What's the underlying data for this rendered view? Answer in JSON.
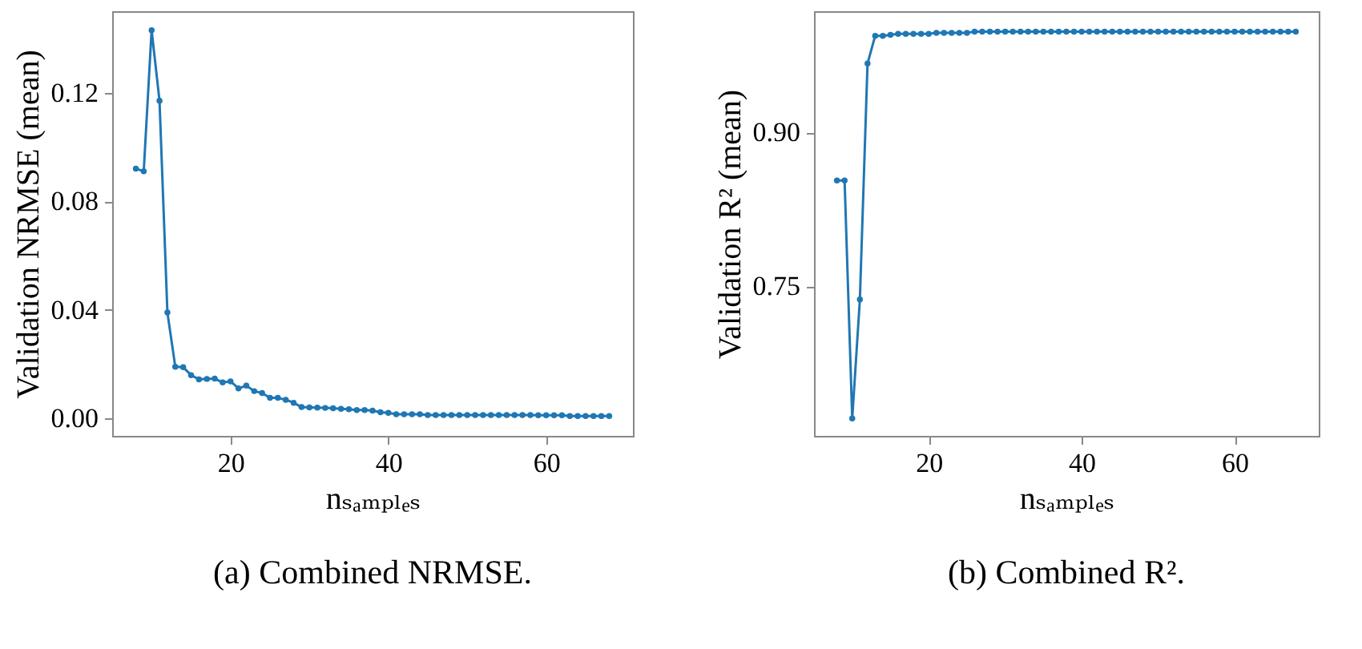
{
  "chart_data": [
    {
      "type": "line",
      "title": "(a) Combined NRMSE.",
      "xlabel": "nₛₐₘₚₗₑₛ",
      "ylabel": "Validation NRMSE (mean)",
      "x": [
        8,
        9,
        10,
        11,
        12,
        13,
        14,
        15,
        16,
        17,
        18,
        19,
        20,
        21,
        22,
        23,
        24,
        25,
        26,
        27,
        28,
        29,
        30,
        31,
        32,
        33,
        34,
        35,
        36,
        37,
        38,
        39,
        40,
        41,
        42,
        43,
        44,
        45,
        46,
        47,
        48,
        49,
        50,
        51,
        52,
        53,
        54,
        55,
        56,
        57,
        58,
        59,
        60,
        61,
        62,
        63,
        64,
        65,
        66,
        67,
        68
      ],
      "series": [
        {
          "color": "#1f77b4",
          "values": [
            0.092,
            0.091,
            0.143,
            0.117,
            0.039,
            0.019,
            0.0188,
            0.0159,
            0.0143,
            0.0145,
            0.0146,
            0.0132,
            0.0136,
            0.011,
            0.012,
            0.01,
            0.0093,
            0.0075,
            0.0075,
            0.0068,
            0.0057,
            0.0041,
            0.004,
            0.0039,
            0.0038,
            0.0037,
            0.0035,
            0.0033,
            0.003,
            0.003,
            0.0028,
            0.0022,
            0.002,
            0.0015,
            0.0015,
            0.0015,
            0.0015,
            0.0012,
            0.0012,
            0.0012,
            0.0012,
            0.0012,
            0.0012,
            0.0012,
            0.0012,
            0.0012,
            0.0012,
            0.0012,
            0.0012,
            0.0012,
            0.0012,
            0.0011,
            0.0011,
            0.0011,
            0.0011,
            0.0008,
            0.0008,
            0.0008,
            0.0008,
            0.0008,
            0.0008
          ]
        }
      ],
      "xlim": [
        5,
        71
      ],
      "xticks": [
        20,
        40,
        60
      ],
      "ylim": [
        -0.0065,
        0.15
      ],
      "yticks": [
        {
          "value": 0,
          "label": "0.00"
        },
        0.04,
        0.08,
        0.12
      ],
      "grid": false,
      "marker": "circle",
      "line_style": "solid"
    },
    {
      "type": "line",
      "title": "(b) Combined R².",
      "xlabel": "nₛₐₘₚₗₑₛ",
      "ylabel": "Validation R² (mean)",
      "x": [
        8,
        9,
        10,
        11,
        12,
        13,
        14,
        15,
        16,
        17,
        18,
        19,
        20,
        21,
        22,
        23,
        24,
        25,
        26,
        27,
        28,
        29,
        30,
        31,
        32,
        33,
        34,
        35,
        36,
        37,
        38,
        39,
        40,
        41,
        42,
        43,
        44,
        45,
        46,
        47,
        48,
        49,
        50,
        51,
        52,
        53,
        54,
        55,
        56,
        57,
        58,
        59,
        60,
        61,
        62,
        63,
        64,
        65,
        66,
        67,
        68
      ],
      "series": [
        {
          "color": "#1f77b4",
          "values": [
            0.853,
            0.853,
            0.621,
            0.737,
            0.967,
            0.994,
            0.994,
            0.995,
            0.996,
            0.996,
            0.996,
            0.996,
            0.996,
            0.997,
            0.997,
            0.997,
            0.997,
            0.997,
            0.998,
            0.998,
            0.998,
            0.998,
            0.998,
            0.998,
            0.998,
            0.998,
            0.998,
            0.998,
            0.998,
            0.998,
            0.998,
            0.998,
            0.998,
            0.998,
            0.998,
            0.998,
            0.998,
            0.998,
            0.998,
            0.998,
            0.998,
            0.998,
            0.998,
            0.998,
            0.998,
            0.998,
            0.998,
            0.998,
            0.998,
            0.998,
            0.998,
            0.998,
            0.998,
            0.998,
            0.998,
            0.998,
            0.998,
            0.998,
            0.998,
            0.998,
            0.998
          ]
        }
      ],
      "xlim": [
        5,
        71
      ],
      "xticks": [
        20,
        40,
        60
      ],
      "ylim": [
        0.604,
        1.018
      ],
      "yticks": [
        {
          "value": 0.75,
          "label": "0.75"
        },
        {
          "value": 0.9,
          "label": "0.90"
        }
      ],
      "grid": false,
      "marker": "circle",
      "line_style": "solid"
    }
  ]
}
